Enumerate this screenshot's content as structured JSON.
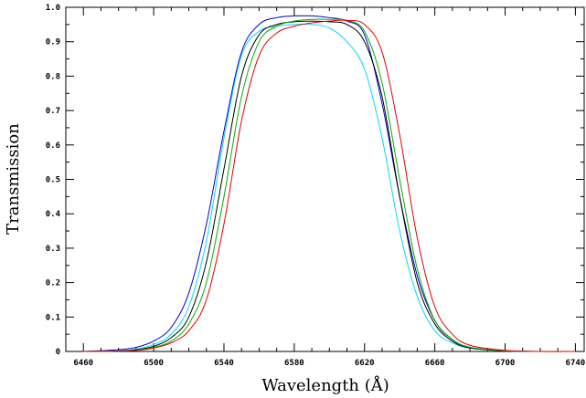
{
  "chart_data": {
    "type": "line",
    "xlabel": "Wavelength (Å)",
    "ylabel": "Transmission",
    "xlim": [
      6450,
      6745
    ],
    "ylim": [
      0,
      1.0
    ],
    "x_ticks": [
      6460,
      6500,
      6540,
      6580,
      6620,
      6660,
      6700,
      6740
    ],
    "y_ticks": [
      0,
      0.1,
      0.2,
      0.3,
      0.4,
      0.5,
      0.6,
      0.7,
      0.8,
      0.9,
      1.0
    ],
    "y_tick_labels": [
      "0",
      "0.1",
      "0.2",
      "0.3",
      "0.4",
      "0.5",
      "0.6",
      "0.7",
      "0.8",
      "0.9",
      "1.0"
    ],
    "grid": false,
    "series": [
      {
        "color": "#0000cc",
        "x": [
          6460,
          6480,
          6490,
          6500,
          6510,
          6520,
          6530,
          6540,
          6550,
          6560,
          6570,
          6580,
          6590,
          6600,
          6610,
          6620,
          6630,
          6640,
          6650,
          6660,
          6670,
          6680,
          6700,
          6720,
          6740
        ],
        "y": [
          0.0,
          0.005,
          0.012,
          0.03,
          0.07,
          0.17,
          0.37,
          0.64,
          0.87,
          0.95,
          0.97,
          0.975,
          0.975,
          0.97,
          0.96,
          0.92,
          0.72,
          0.45,
          0.22,
          0.09,
          0.035,
          0.012,
          0.002,
          0.0,
          0.0
        ]
      },
      {
        "color": "#00d8ff",
        "x": [
          6460,
          6480,
          6490,
          6500,
          6510,
          6520,
          6530,
          6540,
          6550,
          6560,
          6570,
          6580,
          6590,
          6600,
          6610,
          6620,
          6630,
          6640,
          6650,
          6660,
          6670,
          6680,
          6700,
          6720,
          6740
        ],
        "y": [
          0.0,
          0.002,
          0.007,
          0.02,
          0.05,
          0.13,
          0.32,
          0.62,
          0.86,
          0.93,
          0.945,
          0.95,
          0.95,
          0.94,
          0.9,
          0.82,
          0.62,
          0.35,
          0.16,
          0.06,
          0.025,
          0.01,
          0.002,
          0.0,
          0.0
        ]
      },
      {
        "color": "#000000",
        "x": [
          6460,
          6480,
          6490,
          6500,
          6510,
          6520,
          6530,
          6540,
          6550,
          6560,
          6570,
          6580,
          6590,
          6600,
          6610,
          6620,
          6630,
          6640,
          6650,
          6660,
          6670,
          6680,
          6700,
          6720,
          6740
        ],
        "y": [
          0.0,
          0.001,
          0.005,
          0.015,
          0.04,
          0.1,
          0.26,
          0.53,
          0.8,
          0.92,
          0.95,
          0.958,
          0.96,
          0.958,
          0.95,
          0.9,
          0.74,
          0.45,
          0.2,
          0.08,
          0.03,
          0.01,
          0.002,
          0.0,
          0.0
        ]
      },
      {
        "color": "#00b000",
        "x": [
          6460,
          6480,
          6490,
          6500,
          6510,
          6520,
          6530,
          6540,
          6550,
          6560,
          6570,
          6580,
          6590,
          6600,
          6610,
          6620,
          6630,
          6640,
          6650,
          6660,
          6670,
          6680,
          6700,
          6720,
          6740
        ],
        "y": [
          0.0,
          0.001,
          0.004,
          0.012,
          0.03,
          0.08,
          0.2,
          0.45,
          0.74,
          0.9,
          0.945,
          0.96,
          0.965,
          0.965,
          0.962,
          0.93,
          0.78,
          0.5,
          0.24,
          0.09,
          0.035,
          0.012,
          0.002,
          0.0,
          0.0
        ]
      },
      {
        "color": "#e00000",
        "x": [
          6460,
          6480,
          6490,
          6500,
          6510,
          6520,
          6530,
          6540,
          6550,
          6560,
          6570,
          6580,
          6590,
          6600,
          6610,
          6620,
          6630,
          6640,
          6650,
          6660,
          6670,
          6680,
          6700,
          6720,
          6740
        ],
        "y": [
          0.0,
          0.001,
          0.003,
          0.01,
          0.025,
          0.06,
          0.15,
          0.37,
          0.67,
          0.86,
          0.925,
          0.945,
          0.955,
          0.96,
          0.962,
          0.95,
          0.87,
          0.63,
          0.33,
          0.13,
          0.05,
          0.018,
          0.003,
          0.0,
          0.0
        ]
      }
    ]
  }
}
